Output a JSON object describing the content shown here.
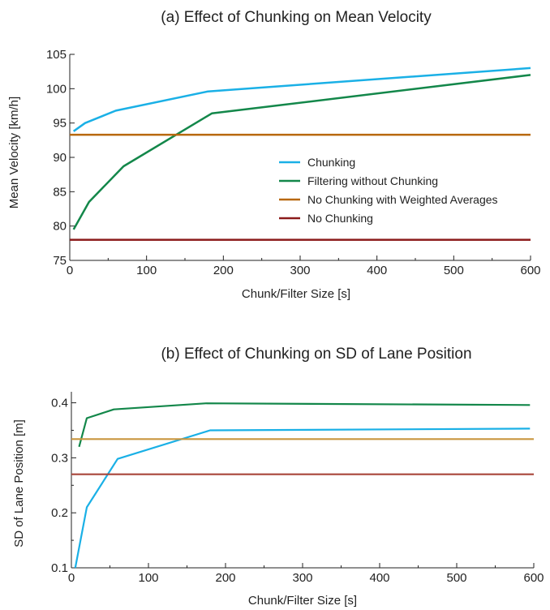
{
  "chart_data": [
    {
      "type": "line",
      "title": "(a) Effect of Chunking on Mean Velocity",
      "xlabel": "Chunk/Filter Size [s]",
      "ylabel": "Mean Velocity [km/h]",
      "xlim": [
        0,
        600
      ],
      "ylim": [
        75,
        105
      ],
      "xticks": [
        0,
        100,
        200,
        300,
        400,
        500,
        600
      ],
      "yticks": [
        75,
        80,
        85,
        90,
        95,
        100,
        105
      ],
      "grid": false,
      "legend_position": "center-right",
      "series": [
        {
          "name": "Chunking",
          "color": "#1ab0e6",
          "x": [
            5,
            20,
            60,
            180,
            600
          ],
          "y": [
            93.8,
            95.0,
            96.8,
            99.6,
            103.0
          ]
        },
        {
          "name": "Filtering without Chunking",
          "color": "#13874a",
          "x": [
            5,
            25,
            70,
            185,
            600
          ],
          "y": [
            79.5,
            83.5,
            88.7,
            96.4,
            102.0
          ]
        },
        {
          "name": "No Chunking with Weighted Averages",
          "color": "#b8680e",
          "x": [
            0,
            600
          ],
          "y": [
            93.3,
            93.3
          ]
        },
        {
          "name": "No Chunking",
          "color": "#8b1a1a",
          "x": [
            0,
            600
          ],
          "y": [
            78.0,
            78.0
          ]
        }
      ]
    },
    {
      "type": "line",
      "title": "(b) Effect of Chunking on SD of Lane Position",
      "xlabel": "Chunk/Filter Size [s]",
      "ylabel": "SD of Lane Position [m]",
      "xlim": [
        0,
        600
      ],
      "ylim": [
        0.1,
        0.42
      ],
      "xticks": [
        0,
        100,
        200,
        300,
        400,
        500,
        600
      ],
      "yticks": [
        0.1,
        0.2,
        0.3,
        0.4
      ],
      "grid": false,
      "series": [
        {
          "color": "#13874a",
          "x": [
            10,
            20,
            55,
            175,
            595
          ],
          "y": [
            0.32,
            0.372,
            0.388,
            0.399,
            0.396
          ]
        },
        {
          "color": "#1ab0e6",
          "x": [
            5,
            20,
            60,
            180,
            595
          ],
          "y": [
            0.1,
            0.21,
            0.298,
            0.35,
            0.353
          ]
        },
        {
          "color": "#c9963f",
          "x": [
            0,
            600
          ],
          "y": [
            0.334,
            0.334
          ]
        },
        {
          "color": "#a8453a",
          "x": [
            0,
            600
          ],
          "y": [
            0.27,
            0.27
          ]
        }
      ]
    }
  ]
}
